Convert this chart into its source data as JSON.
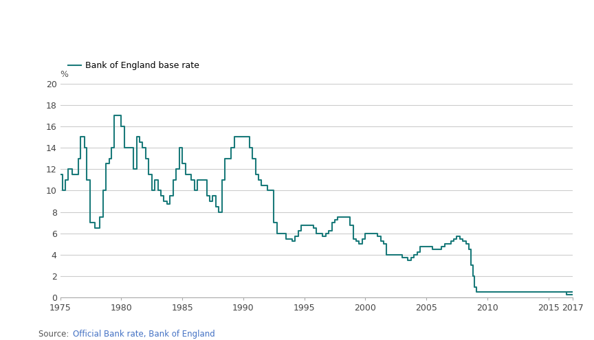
{
  "line_color": "#1a7a7a",
  "background_color": "#ffffff",
  "grid_color": "#cccccc",
  "title": "Bank of England base rate",
  "ylabel": "%",
  "source_prefix": "Source: ",
  "source_link_text": "Official Bank rate, Bank of England",
  "source_link_color": "#4472c4",
  "source_prefix_color": "#555555",
  "xlim": [
    1975,
    2017
  ],
  "ylim": [
    0,
    20
  ],
  "yticks": [
    0,
    2,
    4,
    6,
    8,
    10,
    12,
    14,
    16,
    18,
    20
  ],
  "xticks": [
    1975,
    1980,
    1985,
    1990,
    1995,
    2000,
    2005,
    2010,
    2015,
    2017
  ],
  "data": [
    [
      1975.0,
      11.5
    ],
    [
      1975.17,
      11.5
    ],
    [
      1975.17,
      10.0
    ],
    [
      1975.42,
      10.0
    ],
    [
      1975.42,
      11.0
    ],
    [
      1975.67,
      11.0
    ],
    [
      1975.67,
      12.0
    ],
    [
      1976.0,
      12.0
    ],
    [
      1976.0,
      11.5
    ],
    [
      1976.17,
      11.5
    ],
    [
      1976.17,
      11.5
    ],
    [
      1976.5,
      11.5
    ],
    [
      1976.5,
      13.0
    ],
    [
      1976.67,
      13.0
    ],
    [
      1976.67,
      15.0
    ],
    [
      1977.0,
      15.0
    ],
    [
      1977.0,
      14.0
    ],
    [
      1977.17,
      14.0
    ],
    [
      1977.17,
      11.0
    ],
    [
      1977.42,
      11.0
    ],
    [
      1977.42,
      7.0
    ],
    [
      1977.83,
      7.0
    ],
    [
      1977.83,
      6.5
    ],
    [
      1978.0,
      6.5
    ],
    [
      1978.0,
      6.5
    ],
    [
      1978.25,
      6.5
    ],
    [
      1978.25,
      7.5
    ],
    [
      1978.5,
      7.5
    ],
    [
      1978.5,
      10.0
    ],
    [
      1978.75,
      10.0
    ],
    [
      1978.75,
      12.5
    ],
    [
      1979.0,
      12.5
    ],
    [
      1979.0,
      13.0
    ],
    [
      1979.17,
      13.0
    ],
    [
      1979.17,
      14.0
    ],
    [
      1979.42,
      14.0
    ],
    [
      1979.42,
      17.0
    ],
    [
      1980.0,
      17.0
    ],
    [
      1980.0,
      16.0
    ],
    [
      1980.25,
      16.0
    ],
    [
      1980.25,
      14.0
    ],
    [
      1981.0,
      14.0
    ],
    [
      1981.0,
      12.0
    ],
    [
      1981.25,
      12.0
    ],
    [
      1981.25,
      15.0
    ],
    [
      1981.5,
      15.0
    ],
    [
      1981.5,
      14.5
    ],
    [
      1981.75,
      14.5
    ],
    [
      1981.75,
      14.0
    ],
    [
      1982.0,
      14.0
    ],
    [
      1982.0,
      13.0
    ],
    [
      1982.25,
      13.0
    ],
    [
      1982.25,
      11.5
    ],
    [
      1982.5,
      11.5
    ],
    [
      1982.5,
      10.0
    ],
    [
      1982.75,
      10.0
    ],
    [
      1982.75,
      11.0
    ],
    [
      1983.0,
      11.0
    ],
    [
      1983.0,
      10.0
    ],
    [
      1983.25,
      10.0
    ],
    [
      1983.25,
      9.5
    ],
    [
      1983.5,
      9.5
    ],
    [
      1983.5,
      9.0
    ],
    [
      1983.75,
      9.0
    ],
    [
      1983.75,
      8.75
    ],
    [
      1984.0,
      8.75
    ],
    [
      1984.0,
      9.5
    ],
    [
      1984.25,
      9.5
    ],
    [
      1984.25,
      11.0
    ],
    [
      1984.5,
      11.0
    ],
    [
      1984.5,
      12.0
    ],
    [
      1984.75,
      12.0
    ],
    [
      1984.75,
      14.0
    ],
    [
      1985.0,
      14.0
    ],
    [
      1985.0,
      12.5
    ],
    [
      1985.25,
      12.5
    ],
    [
      1985.25,
      11.5
    ],
    [
      1985.75,
      11.5
    ],
    [
      1985.75,
      11.0
    ],
    [
      1986.0,
      11.0
    ],
    [
      1986.0,
      10.0
    ],
    [
      1986.25,
      10.0
    ],
    [
      1986.25,
      11.0
    ],
    [
      1986.5,
      11.0
    ],
    [
      1987.0,
      11.0
    ],
    [
      1987.0,
      9.5
    ],
    [
      1987.25,
      9.5
    ],
    [
      1987.25,
      9.0
    ],
    [
      1987.5,
      9.0
    ],
    [
      1987.5,
      9.5
    ],
    [
      1987.75,
      9.5
    ],
    [
      1987.75,
      8.5
    ],
    [
      1988.0,
      8.5
    ],
    [
      1988.0,
      8.0
    ],
    [
      1988.25,
      8.0
    ],
    [
      1988.25,
      11.0
    ],
    [
      1988.5,
      11.0
    ],
    [
      1988.5,
      13.0
    ],
    [
      1988.75,
      13.0
    ],
    [
      1989.0,
      13.0
    ],
    [
      1989.0,
      14.0
    ],
    [
      1989.25,
      14.0
    ],
    [
      1989.25,
      15.0
    ],
    [
      1990.0,
      15.0
    ],
    [
      1990.0,
      15.0
    ],
    [
      1990.5,
      15.0
    ],
    [
      1990.5,
      14.0
    ],
    [
      1990.75,
      14.0
    ],
    [
      1990.75,
      13.0
    ],
    [
      1991.0,
      13.0
    ],
    [
      1991.0,
      11.5
    ],
    [
      1991.25,
      11.5
    ],
    [
      1991.25,
      11.0
    ],
    [
      1991.5,
      11.0
    ],
    [
      1991.5,
      10.5
    ],
    [
      1992.0,
      10.5
    ],
    [
      1992.0,
      10.0
    ],
    [
      1992.5,
      10.0
    ],
    [
      1992.5,
      7.0
    ],
    [
      1992.75,
      7.0
    ],
    [
      1992.75,
      6.0
    ],
    [
      1993.0,
      6.0
    ],
    [
      1993.5,
      6.0
    ],
    [
      1993.5,
      5.5
    ],
    [
      1994.0,
      5.5
    ],
    [
      1994.0,
      5.25
    ],
    [
      1994.25,
      5.25
    ],
    [
      1994.25,
      5.75
    ],
    [
      1994.5,
      5.75
    ],
    [
      1994.5,
      6.25
    ],
    [
      1994.75,
      6.25
    ],
    [
      1994.75,
      6.75
    ],
    [
      1995.0,
      6.75
    ],
    [
      1995.75,
      6.75
    ],
    [
      1995.75,
      6.5
    ],
    [
      1996.0,
      6.5
    ],
    [
      1996.0,
      6.0
    ],
    [
      1996.5,
      6.0
    ],
    [
      1996.5,
      5.75
    ],
    [
      1996.75,
      5.75
    ],
    [
      1996.75,
      6.0
    ],
    [
      1997.0,
      6.0
    ],
    [
      1997.0,
      6.25
    ],
    [
      1997.25,
      6.25
    ],
    [
      1997.25,
      7.0
    ],
    [
      1997.5,
      7.0
    ],
    [
      1997.5,
      7.25
    ],
    [
      1997.75,
      7.25
    ],
    [
      1997.75,
      7.5
    ],
    [
      1998.0,
      7.5
    ],
    [
      1998.75,
      7.5
    ],
    [
      1998.75,
      6.75
    ],
    [
      1999.0,
      6.75
    ],
    [
      1999.0,
      5.5
    ],
    [
      1999.25,
      5.5
    ],
    [
      1999.25,
      5.25
    ],
    [
      1999.5,
      5.25
    ],
    [
      1999.5,
      5.0
    ],
    [
      1999.75,
      5.0
    ],
    [
      1999.75,
      5.5
    ],
    [
      2000.0,
      5.5
    ],
    [
      2000.0,
      6.0
    ],
    [
      2001.0,
      6.0
    ],
    [
      2001.0,
      5.75
    ],
    [
      2001.25,
      5.75
    ],
    [
      2001.25,
      5.25
    ],
    [
      2001.5,
      5.25
    ],
    [
      2001.5,
      5.0
    ],
    [
      2001.75,
      5.0
    ],
    [
      2001.75,
      4.0
    ],
    [
      2002.0,
      4.0
    ],
    [
      2003.0,
      4.0
    ],
    [
      2003.0,
      3.75
    ],
    [
      2003.5,
      3.75
    ],
    [
      2003.5,
      3.5
    ],
    [
      2003.75,
      3.5
    ],
    [
      2003.75,
      3.75
    ],
    [
      2004.0,
      3.75
    ],
    [
      2004.0,
      4.0
    ],
    [
      2004.25,
      4.0
    ],
    [
      2004.25,
      4.25
    ],
    [
      2004.5,
      4.25
    ],
    [
      2004.5,
      4.75
    ],
    [
      2005.0,
      4.75
    ],
    [
      2005.5,
      4.75
    ],
    [
      2005.5,
      4.5
    ],
    [
      2006.0,
      4.5
    ],
    [
      2006.0,
      4.5
    ],
    [
      2006.25,
      4.5
    ],
    [
      2006.25,
      4.75
    ],
    [
      2006.5,
      4.75
    ],
    [
      2006.5,
      5.0
    ],
    [
      2007.0,
      5.0
    ],
    [
      2007.0,
      5.25
    ],
    [
      2007.25,
      5.25
    ],
    [
      2007.25,
      5.5
    ],
    [
      2007.5,
      5.5
    ],
    [
      2007.5,
      5.75
    ],
    [
      2007.75,
      5.75
    ],
    [
      2007.75,
      5.5
    ],
    [
      2008.0,
      5.5
    ],
    [
      2008.0,
      5.25
    ],
    [
      2008.25,
      5.25
    ],
    [
      2008.25,
      5.0
    ],
    [
      2008.5,
      5.0
    ],
    [
      2008.5,
      4.5
    ],
    [
      2008.67,
      4.5
    ],
    [
      2008.67,
      3.0
    ],
    [
      2008.83,
      3.0
    ],
    [
      2008.83,
      2.0
    ],
    [
      2008.92,
      2.0
    ],
    [
      2008.92,
      1.0
    ],
    [
      2009.08,
      1.0
    ],
    [
      2009.08,
      0.5
    ],
    [
      2017.0,
      0.5
    ],
    [
      2016.5,
      0.5
    ],
    [
      2016.5,
      0.25
    ],
    [
      2017.0,
      0.25
    ]
  ]
}
